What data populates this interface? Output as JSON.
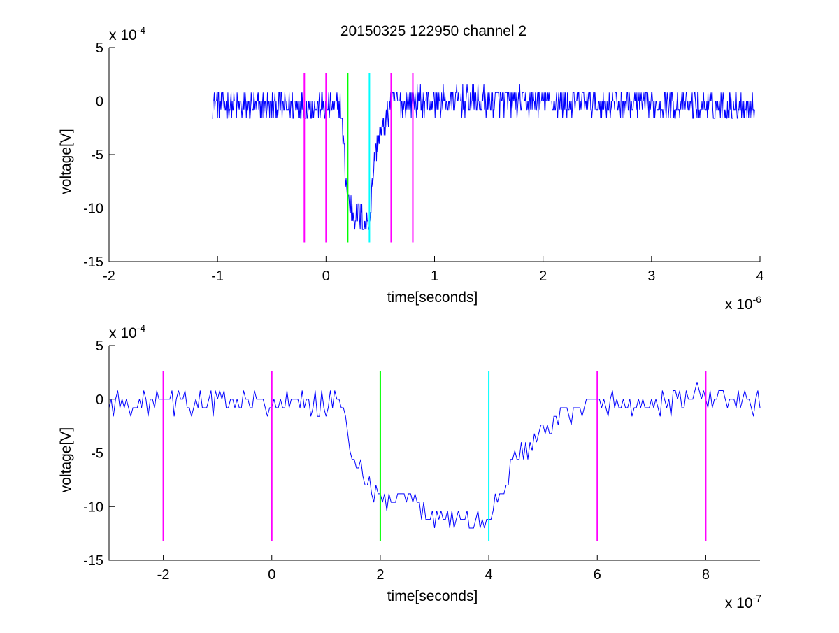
{
  "figure": {
    "title": "20150325 122950 channel 2"
  },
  "chart_data": [
    {
      "type": "line",
      "xlabel": "time[seconds]",
      "ylabel": "voltage[V]",
      "x_multiplier": {
        "base": "x 10",
        "exponent": "-6"
      },
      "y_multiplier": {
        "base": "x 10",
        "exponent": "-4"
      },
      "xlim": [
        -2,
        4
      ],
      "ylim": [
        -15,
        5
      ],
      "xticks": [
        -2,
        -1,
        0,
        1,
        2,
        3,
        4
      ],
      "xtick_labels": [
        "-2",
        "-1",
        "0",
        "1",
        "2",
        "3",
        "4"
      ],
      "yticks": [
        -15,
        -10,
        -5,
        0,
        5
      ],
      "ytick_labels": [
        "-15",
        "-10",
        "-5",
        "0",
        "5"
      ],
      "grid": false,
      "signal": {
        "color": "#0000ff",
        "x_start": -1.05,
        "x_end": 3.95,
        "points": [
          [
            -1.05,
            0
          ],
          [
            -0.9,
            -0.5
          ],
          [
            -0.75,
            -0.5
          ],
          [
            -0.6,
            -0.5
          ],
          [
            -0.45,
            -0.5
          ],
          [
            -0.3,
            -0.5
          ],
          [
            -0.15,
            -0.5
          ],
          [
            0.0,
            -0.5
          ],
          [
            0.1,
            -0.5
          ],
          [
            0.13,
            -0.3
          ],
          [
            0.16,
            -3.5
          ],
          [
            0.18,
            -7.0
          ],
          [
            0.2,
            -9.0
          ],
          [
            0.25,
            -10.5
          ],
          [
            0.3,
            -10.5
          ],
          [
            0.35,
            -11.5
          ],
          [
            0.4,
            -11.2
          ],
          [
            0.45,
            -5.0
          ],
          [
            0.5,
            -3.0
          ],
          [
            0.55,
            -2.0
          ],
          [
            0.6,
            -0.2
          ],
          [
            0.8,
            0
          ],
          [
            1.5,
            0
          ],
          [
            3.95,
            -0.5
          ]
        ],
        "noise_amplitude": 1.3
      },
      "markers": [
        {
          "x": -0.2,
          "color": "#ff00ff"
        },
        {
          "x": 0.0,
          "color": "#ff00ff"
        },
        {
          "x": 0.2,
          "color": "#00ff00"
        },
        {
          "x": 0.4,
          "color": "#00ffff"
        },
        {
          "x": 0.6,
          "color": "#ff00ff"
        },
        {
          "x": 0.8,
          "color": "#ff00ff"
        }
      ],
      "marker_span": [
        -13.2,
        2.6
      ]
    },
    {
      "type": "line",
      "xlabel": "time[seconds]",
      "ylabel": "voltage[V]",
      "x_multiplier": {
        "base": "x 10",
        "exponent": "-7"
      },
      "y_multiplier": {
        "base": "x 10",
        "exponent": "-4"
      },
      "xlim": [
        -3,
        9
      ],
      "ylim": [
        -15,
        5
      ],
      "xticks": [
        -2,
        0,
        2,
        4,
        6,
        8
      ],
      "xtick_labels": [
        "-2",
        "0",
        "2",
        "4",
        "6",
        "8"
      ],
      "yticks": [
        -15,
        -10,
        -5,
        0,
        5
      ],
      "ytick_labels": [
        "-15",
        "-10",
        "-5",
        "0",
        "5"
      ],
      "grid": false,
      "signal": {
        "color": "#0000ff",
        "x_start": -3,
        "x_end": 9,
        "points": [
          [
            -3,
            -0.5
          ],
          [
            -2,
            -0.3
          ],
          [
            -1,
            -0.3
          ],
          [
            0,
            -0.5
          ],
          [
            1.0,
            -0.5
          ],
          [
            1.3,
            -0.3
          ],
          [
            1.4,
            -3.5
          ],
          [
            1.6,
            -6.5
          ],
          [
            1.8,
            -8.5
          ],
          [
            2.0,
            -9.5
          ],
          [
            2.5,
            -9.5
          ],
          [
            3.0,
            -10.8
          ],
          [
            3.5,
            -11.3
          ],
          [
            4.0,
            -11.2
          ],
          [
            4.2,
            -9.0
          ],
          [
            4.5,
            -5.5
          ],
          [
            4.9,
            -3.5
          ],
          [
            5.2,
            -2.3
          ],
          [
            5.5,
            -1.0
          ],
          [
            6.0,
            -0.5
          ],
          [
            7.0,
            -0.5
          ],
          [
            8.0,
            0.3
          ],
          [
            9.0,
            -0.5
          ]
        ],
        "noise_amplitude": 1.1
      },
      "markers": [
        {
          "x": -2,
          "color": "#ff00ff"
        },
        {
          "x": 0,
          "color": "#ff00ff"
        },
        {
          "x": 2,
          "color": "#00ff00"
        },
        {
          "x": 4,
          "color": "#00ffff"
        },
        {
          "x": 6,
          "color": "#ff00ff"
        },
        {
          "x": 8,
          "color": "#ff00ff"
        }
      ],
      "marker_span": [
        -13.2,
        2.6
      ]
    }
  ]
}
